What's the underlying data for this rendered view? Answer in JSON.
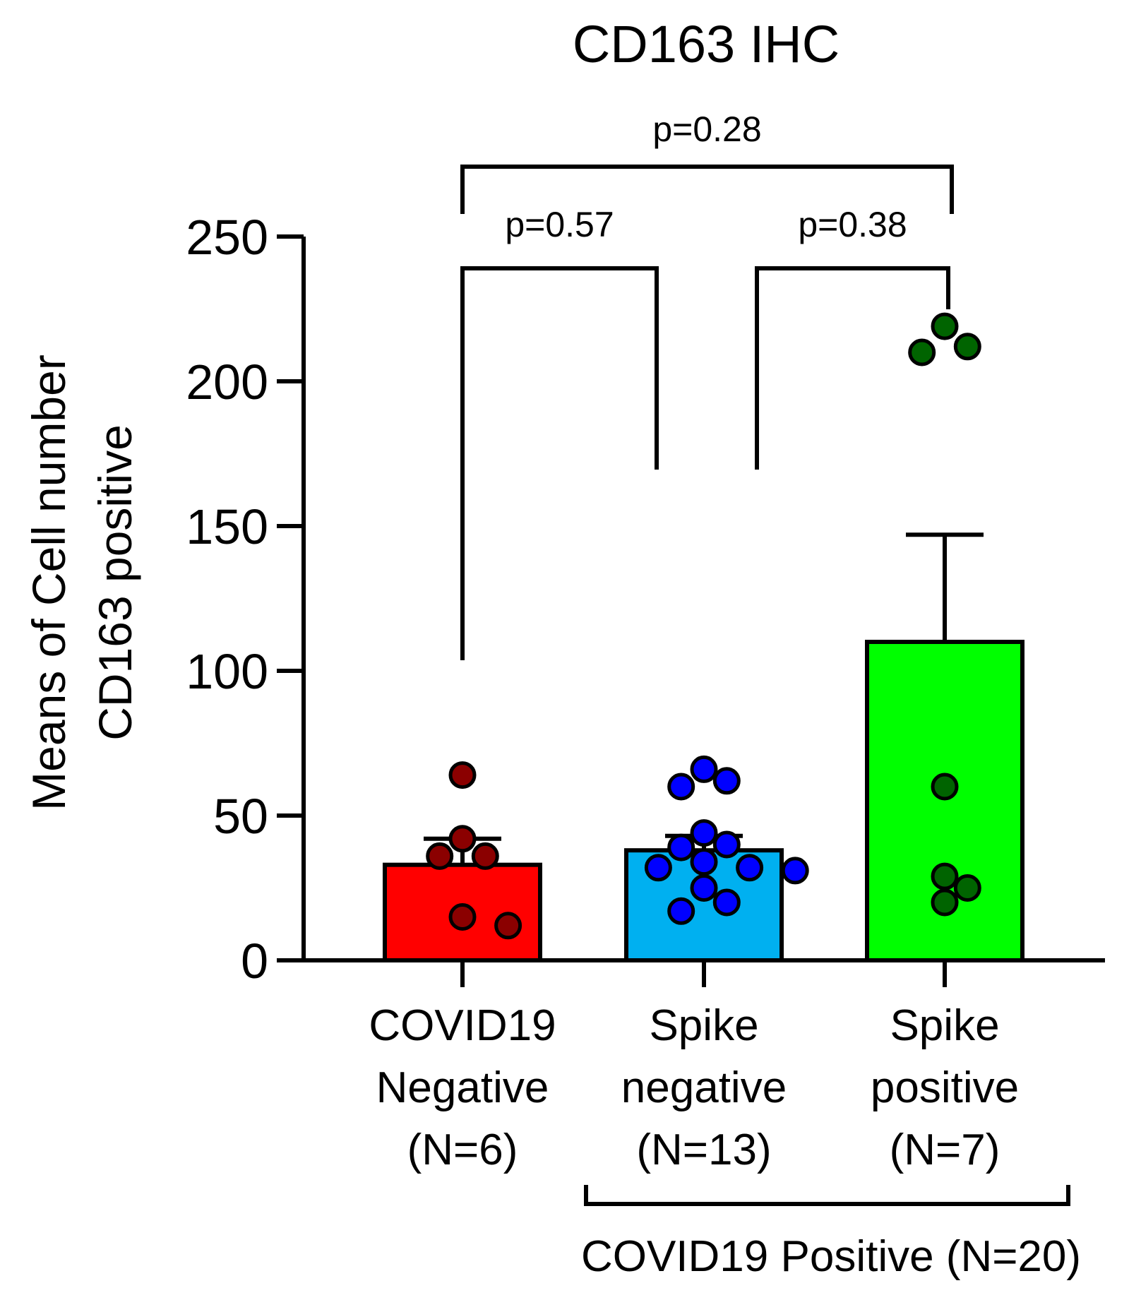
{
  "chart_data": {
    "type": "bar",
    "title": "CD163 IHC",
    "ylabel_lines": [
      "Means of Cell number",
      "CD163 positive"
    ],
    "ylim": [
      0,
      250
    ],
    "yticks": [
      0,
      50,
      100,
      150,
      200,
      250
    ],
    "categories": [
      {
        "lines": [
          "COVID19",
          "Negative",
          "(N=6)"
        ]
      },
      {
        "lines": [
          "Spike",
          "negative",
          "(N=13)"
        ]
      },
      {
        "lines": [
          "Spike",
          "positive",
          "(N=7)"
        ]
      }
    ],
    "series": [
      {
        "mean": 33,
        "error": 9,
        "color": "#ff0000",
        "point_color": "#8b0000",
        "points": [
          64,
          42,
          36,
          36,
          15,
          12
        ]
      },
      {
        "mean": 38,
        "error": 5,
        "color": "#00b0f0",
        "point_color": "#0000ff",
        "points": [
          66,
          62,
          60,
          44,
          40,
          39,
          34,
          32,
          32,
          31,
          25,
          20,
          17
        ]
      },
      {
        "mean": 110,
        "error": 37,
        "color": "#00ff00",
        "point_color": "#006400",
        "points": [
          219,
          212,
          210,
          60,
          29,
          25,
          20
        ]
      }
    ],
    "comparisons": [
      {
        "from": 0,
        "to": 1,
        "label": "p=0.57"
      },
      {
        "from": 1,
        "to": 2,
        "label": "p=0.38"
      },
      {
        "from": 0,
        "to": 2,
        "label": "p=0.28"
      }
    ],
    "group_bracket": {
      "from": 1,
      "to": 2,
      "label": "COVID19 Positive (N=20)"
    }
  }
}
